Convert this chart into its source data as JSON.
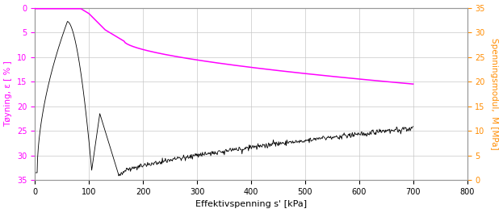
{
  "xlabel": "Effektivspenning s' [kPa]",
  "ylabel_left": "Tøyning, ε [ % ]",
  "ylabel_right": "Spenningsmodul,  M [MPa]",
  "xlim": [
    0,
    800
  ],
  "ylim_left": [
    0,
    35
  ],
  "ylim_right": [
    0,
    35
  ],
  "left_ticks": [
    0.0,
    5.0,
    10.0,
    15.0,
    20.0,
    25.0,
    30.0,
    35.0
  ],
  "right_ticks": [
    0.0,
    5.0,
    10.0,
    15.0,
    20.0,
    25.0,
    30.0,
    35.0
  ],
  "xticks": [
    0,
    100,
    200,
    300,
    400,
    500,
    600,
    700,
    800
  ],
  "black_line_color": "#000000",
  "pink_line_color": "#FF00FF",
  "background_color": "#ffffff",
  "grid_color": "#c8c8c8",
  "left_label_color": "#FF00FF",
  "right_label_color": "#FF8C00",
  "xlabel_color": "#000000",
  "figsize": [
    6.23,
    2.64
  ],
  "dpi": 100
}
